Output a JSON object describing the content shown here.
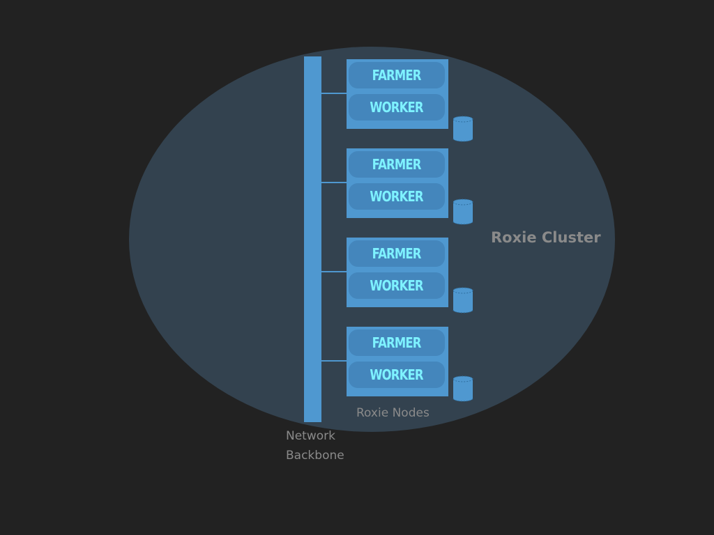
{
  "diagram": {
    "cluster_label": "Roxie Cluster",
    "nodes_label": "Roxie Nodes",
    "backbone_label": [
      "Network",
      "Backbone"
    ],
    "nodes": [
      {
        "roles": [
          "FARMER",
          "WORKER"
        ]
      },
      {
        "roles": [
          "FARMER",
          "WORKER"
        ]
      },
      {
        "roles": [
          "FARMER",
          "WORKER"
        ]
      },
      {
        "roles": [
          "FARMER",
          "WORKER"
        ]
      }
    ]
  },
  "colors": {
    "background": "#222222",
    "cluster": "#33424f",
    "node": "#4f98d0",
    "role_pill": "#4486bc",
    "role_text": "#7ef2ff",
    "label_text": "#8a8a8a"
  },
  "icons": {
    "disk": "database-cylinder-icon"
  }
}
